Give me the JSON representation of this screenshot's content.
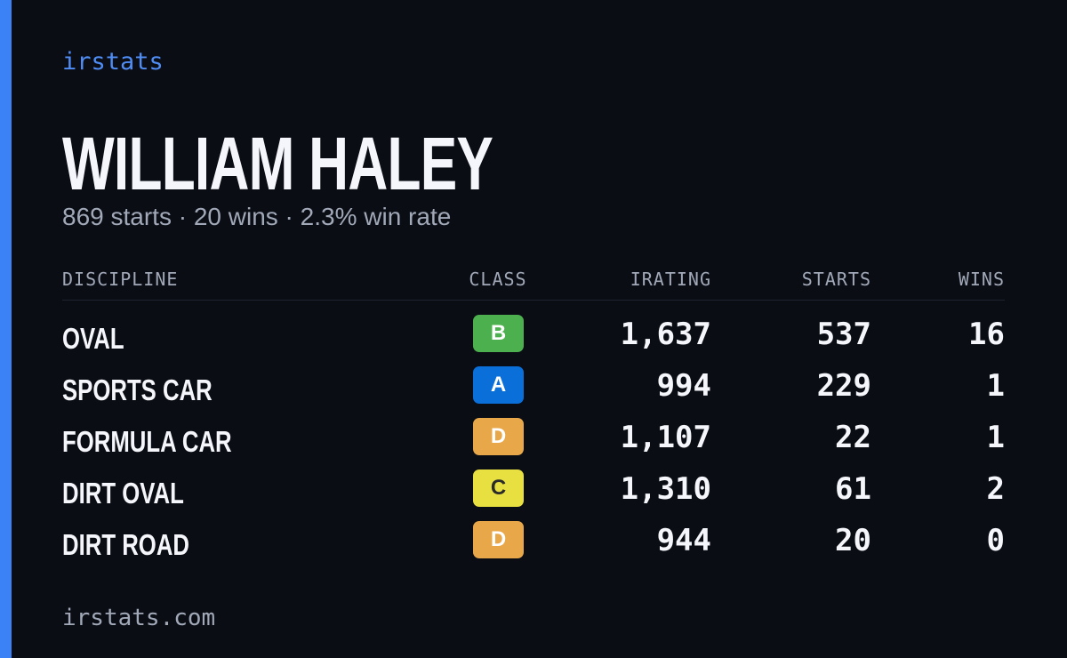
{
  "brand": "irstats",
  "name": "WILLIAM HALEY",
  "summary": "869 starts · 20 wins · 2.3% win rate",
  "table": {
    "headers": [
      "DISCIPLINE",
      "CLASS",
      "IRATING",
      "STARTS",
      "WINS"
    ],
    "rows": [
      [
        "OVAL",
        "B",
        "1,637",
        "537",
        "16"
      ],
      [
        "SPORTS CAR",
        "A",
        "994",
        "229",
        "1"
      ],
      [
        "FORMULA CAR",
        "D",
        "1,107",
        "22",
        "1"
      ],
      [
        "DIRT OVAL",
        "C",
        "1,310",
        "61",
        "2"
      ],
      [
        "DIRT ROAD",
        "D",
        "944",
        "20",
        "0"
      ]
    ],
    "class_colors": {
      "A": "#0a6fd8",
      "B": "#4cb04f",
      "C": "#e8df40",
      "D": "#e8a84a"
    }
  },
  "footer": "irstats.com"
}
